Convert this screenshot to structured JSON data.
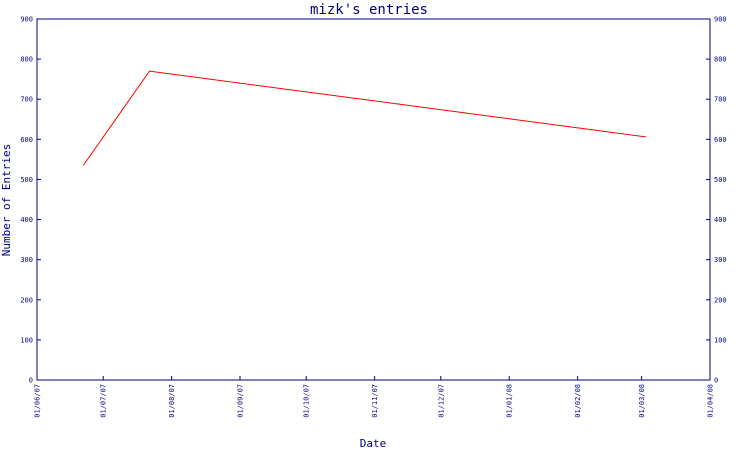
{
  "colors": {
    "axis": "#000080",
    "series": "#ff0000",
    "background": "#ffffff"
  },
  "chart_data": {
    "type": "line",
    "title": "mizk's entries",
    "xlabel": "Date",
    "ylabel": "Number of Entries",
    "x_tick_labels": [
      "01/06/07",
      "01/07/07",
      "01/08/07",
      "01/09/07",
      "01/10/07",
      "01/11/07",
      "01/12/07",
      "01/01/08",
      "01/02/08",
      "01/03/08",
      "01/04/08"
    ],
    "y_ticks": [
      0,
      100,
      200,
      300,
      400,
      500,
      600,
      700,
      800,
      900
    ],
    "ylim": [
      0,
      900
    ],
    "grid": false,
    "series": [
      {
        "color": "#ff0000",
        "points": [
          {
            "x": "2007-06-22",
            "y": 535
          },
          {
            "x": "2007-07-22",
            "y": 770
          },
          {
            "x": "2008-03-03",
            "y": 606
          }
        ]
      }
    ]
  }
}
